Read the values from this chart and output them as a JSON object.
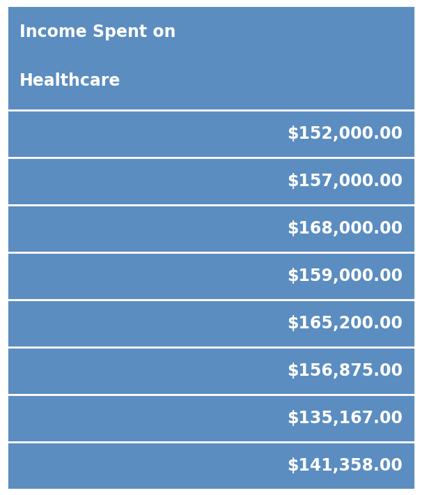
{
  "header_lines": [
    "Income Spent on",
    "Healthcare"
  ],
  "values": [
    "$152,000.00",
    "$157,000.00",
    "$168,000.00",
    "$159,000.00",
    "$165,200.00",
    "$156,875.00",
    "$135,167.00",
    "$141,358.00"
  ],
  "bg_color": "#5B8DC0",
  "outer_bg": "#FFFFFF",
  "text_color": "#FFFFFF",
  "divider_color": "#FFFFFF",
  "header_fontsize": 17,
  "value_fontsize": 17,
  "fig_width": 6.06,
  "fig_height": 7.1,
  "dpi": 100
}
